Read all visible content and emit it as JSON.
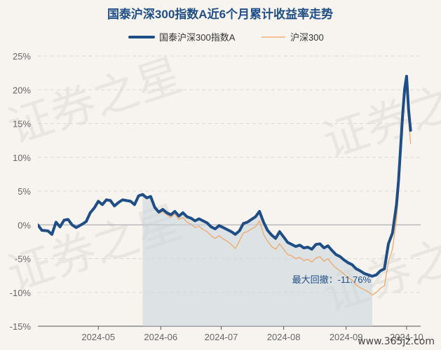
{
  "watermark": "证券之星",
  "site_mark": "www.365jz.com",
  "colors": {
    "fund": "#1f4e86",
    "index": "#f0a35e",
    "drawdown": "#c9d3dc",
    "grid": "#d9d9d9",
    "zero": "#bbbbbb"
  },
  "chart_data": {
    "type": "line",
    "title": "国泰沪深300指数A近6个月累计收益率走势",
    "xlabel": "",
    "ylabel": "",
    "ylim": [
      -15,
      25
    ],
    "yticks": [
      -15,
      -10,
      -5,
      0,
      5,
      10,
      15,
      20,
      25
    ],
    "ytick_labels": [
      "-15%",
      "-10%",
      "-5%",
      "0%",
      "5%",
      "10%",
      "15%",
      "20%",
      "25%"
    ],
    "x_range": [
      "2024-04-01",
      "2024-10-08"
    ],
    "xticks": [
      "2024-05-01",
      "2024-06-01",
      "2024-07-01",
      "2024-08-01",
      "2024-09-01",
      "2024-10-01"
    ],
    "xtick_labels": [
      "2024-05",
      "2024-06",
      "2024-07",
      "2024-08",
      "2024-09",
      "2024-10"
    ],
    "grid": true,
    "legend_position": "top",
    "series": [
      {
        "name": "国泰沪深300指数A",
        "color": "#1f4e86",
        "width": 4,
        "data": [
          [
            "2024-04-01",
            0.0
          ],
          [
            "2024-04-03",
            -0.8
          ],
          [
            "2024-04-06",
            -0.9
          ],
          [
            "2024-04-08",
            -1.4
          ],
          [
            "2024-04-10",
            0.4
          ],
          [
            "2024-04-12",
            -0.3
          ],
          [
            "2024-04-14",
            0.7
          ],
          [
            "2024-04-16",
            0.8
          ],
          [
            "2024-04-18",
            0.0
          ],
          [
            "2024-04-20",
            -0.4
          ],
          [
            "2024-04-23",
            0.1
          ],
          [
            "2024-04-25",
            0.5
          ],
          [
            "2024-04-27",
            1.8
          ],
          [
            "2024-04-29",
            2.5
          ],
          [
            "2024-05-01",
            3.5
          ],
          [
            "2024-05-03",
            3.0
          ],
          [
            "2024-05-05",
            3.7
          ],
          [
            "2024-05-07",
            3.6
          ],
          [
            "2024-05-09",
            2.8
          ],
          [
            "2024-05-11",
            3.3
          ],
          [
            "2024-05-13",
            3.7
          ],
          [
            "2024-05-15",
            3.6
          ],
          [
            "2024-05-17",
            3.5
          ],
          [
            "2024-05-19",
            3.0
          ],
          [
            "2024-05-21",
            4.3
          ],
          [
            "2024-05-23",
            4.5
          ],
          [
            "2024-05-25",
            4.0
          ],
          [
            "2024-05-27",
            4.2
          ],
          [
            "2024-05-29",
            2.6
          ],
          [
            "2024-05-31",
            1.9
          ],
          [
            "2024-06-02",
            2.3
          ],
          [
            "2024-06-04",
            1.8
          ],
          [
            "2024-06-06",
            1.5
          ],
          [
            "2024-06-08",
            2.0
          ],
          [
            "2024-06-10",
            1.3
          ],
          [
            "2024-06-12",
            1.8
          ],
          [
            "2024-06-14",
            1.2
          ],
          [
            "2024-06-16",
            1.0
          ],
          [
            "2024-06-18",
            0.6
          ],
          [
            "2024-06-20",
            0.9
          ],
          [
            "2024-06-22",
            0.6
          ],
          [
            "2024-06-24",
            0.3
          ],
          [
            "2024-06-26",
            -0.3
          ],
          [
            "2024-06-28",
            -0.6
          ],
          [
            "2024-06-30",
            -0.1
          ],
          [
            "2024-07-02",
            -0.4
          ],
          [
            "2024-07-04",
            -0.7
          ],
          [
            "2024-07-06",
            -1.0
          ],
          [
            "2024-07-08",
            -1.4
          ],
          [
            "2024-07-10",
            -0.9
          ],
          [
            "2024-07-12",
            0.2
          ],
          [
            "2024-07-14",
            0.4
          ],
          [
            "2024-07-16",
            0.8
          ],
          [
            "2024-07-18",
            1.2
          ],
          [
            "2024-07-20",
            2.0
          ],
          [
            "2024-07-22",
            0.4
          ],
          [
            "2024-07-24",
            -0.8
          ],
          [
            "2024-07-26",
            -1.5
          ],
          [
            "2024-07-28",
            -2.0
          ],
          [
            "2024-07-30",
            -1.0
          ],
          [
            "2024-08-01",
            -1.8
          ],
          [
            "2024-08-03",
            -2.6
          ],
          [
            "2024-08-05",
            -2.9
          ],
          [
            "2024-08-07",
            -3.2
          ],
          [
            "2024-08-09",
            -3.0
          ],
          [
            "2024-08-11",
            -3.4
          ],
          [
            "2024-08-13",
            -3.3
          ],
          [
            "2024-08-15",
            -3.6
          ],
          [
            "2024-08-17",
            -2.9
          ],
          [
            "2024-08-19",
            -2.8
          ],
          [
            "2024-08-21",
            -3.4
          ],
          [
            "2024-08-23",
            -3.1
          ],
          [
            "2024-08-25",
            -3.8
          ],
          [
            "2024-08-27",
            -4.4
          ],
          [
            "2024-08-29",
            -4.7
          ],
          [
            "2024-08-31",
            -5.2
          ],
          [
            "2024-09-02",
            -5.6
          ],
          [
            "2024-09-04",
            -5.9
          ],
          [
            "2024-09-06",
            -6.5
          ],
          [
            "2024-09-08",
            -6.8
          ],
          [
            "2024-09-10",
            -7.2
          ],
          [
            "2024-09-12",
            -7.4
          ],
          [
            "2024-09-14",
            -7.6
          ],
          [
            "2024-09-16",
            -7.4
          ],
          [
            "2024-09-18",
            -6.8
          ],
          [
            "2024-09-20",
            -6.5
          ],
          [
            "2024-09-22",
            -2.8
          ],
          [
            "2024-09-24",
            -1.2
          ],
          [
            "2024-09-26",
            3.0
          ],
          [
            "2024-09-27",
            6.5
          ],
          [
            "2024-09-29",
            16.0
          ],
          [
            "2024-09-30",
            20.0
          ],
          [
            "2024-10-01",
            22.0
          ],
          [
            "2024-10-02",
            17.0
          ],
          [
            "2024-10-03",
            14.0
          ]
        ]
      },
      {
        "name": "沪深300",
        "color": "#f0a35e",
        "width": 1.2,
        "data": [
          [
            "2024-04-01",
            0.0
          ],
          [
            "2024-04-03",
            -0.8
          ],
          [
            "2024-04-06",
            -0.9
          ],
          [
            "2024-04-08",
            -1.5
          ],
          [
            "2024-04-10",
            0.3
          ],
          [
            "2024-04-12",
            -0.4
          ],
          [
            "2024-04-14",
            0.6
          ],
          [
            "2024-04-16",
            0.7
          ],
          [
            "2024-04-18",
            -0.1
          ],
          [
            "2024-04-20",
            -0.5
          ],
          [
            "2024-04-23",
            0.0
          ],
          [
            "2024-04-25",
            0.4
          ],
          [
            "2024-04-27",
            1.7
          ],
          [
            "2024-04-29",
            2.4
          ],
          [
            "2024-05-01",
            3.4
          ],
          [
            "2024-05-03",
            2.9
          ],
          [
            "2024-05-05",
            3.6
          ],
          [
            "2024-05-07",
            3.5
          ],
          [
            "2024-05-09",
            2.7
          ],
          [
            "2024-05-11",
            3.2
          ],
          [
            "2024-05-13",
            3.6
          ],
          [
            "2024-05-15",
            3.5
          ],
          [
            "2024-05-17",
            3.4
          ],
          [
            "2024-05-19",
            2.9
          ],
          [
            "2024-05-21",
            4.2
          ],
          [
            "2024-05-23",
            4.4
          ],
          [
            "2024-05-25",
            3.9
          ],
          [
            "2024-05-27",
            4.0
          ],
          [
            "2024-05-29",
            2.4
          ],
          [
            "2024-05-31",
            1.7
          ],
          [
            "2024-06-02",
            2.0
          ],
          [
            "2024-06-04",
            1.5
          ],
          [
            "2024-06-06",
            1.1
          ],
          [
            "2024-06-08",
            1.6
          ],
          [
            "2024-06-10",
            0.8
          ],
          [
            "2024-06-12",
            1.1
          ],
          [
            "2024-06-14",
            0.4
          ],
          [
            "2024-06-16",
            0.1
          ],
          [
            "2024-06-18",
            -0.4
          ],
          [
            "2024-06-20",
            -0.2
          ],
          [
            "2024-06-22",
            -0.7
          ],
          [
            "2024-06-24",
            -1.0
          ],
          [
            "2024-06-26",
            -1.6
          ],
          [
            "2024-06-28",
            -2.0
          ],
          [
            "2024-06-30",
            -1.6
          ],
          [
            "2024-07-02",
            -2.1
          ],
          [
            "2024-07-04",
            -2.4
          ],
          [
            "2024-07-06",
            -2.9
          ],
          [
            "2024-07-08",
            -3.5
          ],
          [
            "2024-07-10",
            -2.4
          ],
          [
            "2024-07-12",
            -1.2
          ],
          [
            "2024-07-14",
            -1.0
          ],
          [
            "2024-07-16",
            -0.6
          ],
          [
            "2024-07-18",
            -0.3
          ],
          [
            "2024-07-20",
            0.6
          ],
          [
            "2024-07-22",
            -1.4
          ],
          [
            "2024-07-24",
            -2.4
          ],
          [
            "2024-07-26",
            -3.2
          ],
          [
            "2024-07-28",
            -3.6
          ],
          [
            "2024-07-30",
            -2.8
          ],
          [
            "2024-08-01",
            -3.6
          ],
          [
            "2024-08-03",
            -4.4
          ],
          [
            "2024-08-05",
            -4.6
          ],
          [
            "2024-08-07",
            -5.0
          ],
          [
            "2024-08-09",
            -4.8
          ],
          [
            "2024-08-11",
            -5.3
          ],
          [
            "2024-08-13",
            -5.1
          ],
          [
            "2024-08-15",
            -5.5
          ],
          [
            "2024-08-17",
            -4.9
          ],
          [
            "2024-08-19",
            -4.7
          ],
          [
            "2024-08-21",
            -5.4
          ],
          [
            "2024-08-23",
            -5.0
          ],
          [
            "2024-08-25",
            -5.8
          ],
          [
            "2024-08-27",
            -6.4
          ],
          [
            "2024-08-29",
            -6.8
          ],
          [
            "2024-08-31",
            -7.3
          ],
          [
            "2024-09-02",
            -7.8
          ],
          [
            "2024-09-04",
            -8.2
          ],
          [
            "2024-09-06",
            -8.9
          ],
          [
            "2024-09-08",
            -9.3
          ],
          [
            "2024-09-10",
            -9.6
          ],
          [
            "2024-09-12",
            -9.9
          ],
          [
            "2024-09-14",
            -10.4
          ],
          [
            "2024-09-16",
            -10.0
          ],
          [
            "2024-09-18",
            -9.4
          ],
          [
            "2024-09-20",
            -9.0
          ],
          [
            "2024-09-22",
            -5.5
          ],
          [
            "2024-09-24",
            -3.6
          ],
          [
            "2024-09-26",
            0.8
          ],
          [
            "2024-09-27",
            4.6
          ],
          [
            "2024-09-29",
            14.0
          ],
          [
            "2024-09-30",
            18.5
          ],
          [
            "2024-10-01",
            20.5
          ],
          [
            "2024-10-02",
            15.5
          ],
          [
            "2024-10-03",
            12.0
          ]
        ]
      }
    ],
    "max_drawdown": {
      "label": "最大回撤：-11.76%",
      "value": -11.76,
      "start": "2024-05-23",
      "end": "2024-09-14"
    }
  }
}
